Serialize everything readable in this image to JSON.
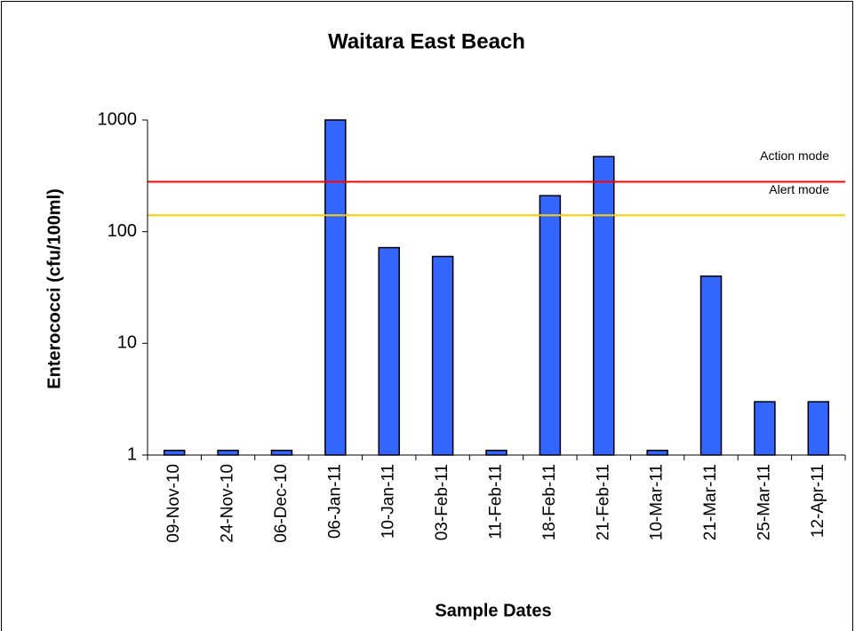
{
  "chart_data": {
    "type": "bar",
    "title": "Waitara East Beach",
    "x_label": "Sample Dates",
    "y_label": "Enterococci (cfu/100ml)",
    "categories": [
      "09-Nov-10",
      "24-Nov-10",
      "06-Dec-10",
      "06-Jan-11",
      "10-Jan-11",
      "03-Feb-11",
      "11-Feb-11",
      "18-Feb-11",
      "21-Feb-11",
      "10-Mar-11",
      "21-Mar-11",
      "25-Mar-11",
      "12-Apr-11"
    ],
    "values": [
      1.1,
      1.1,
      1.1,
      1000,
      72,
      60,
      1.1,
      210,
      470,
      1.1,
      40,
      3,
      3
    ],
    "color": "#3366ff",
    "yscale": "log",
    "ylim": [
      1,
      1000
    ],
    "yticks": [
      1,
      10,
      100,
      1000
    ],
    "reference_lines": [
      {
        "name": "Action mode",
        "value": 280,
        "color": "#ff0000"
      },
      {
        "name": "Alert mode",
        "value": 140,
        "color": "#ffcc00"
      }
    ]
  }
}
